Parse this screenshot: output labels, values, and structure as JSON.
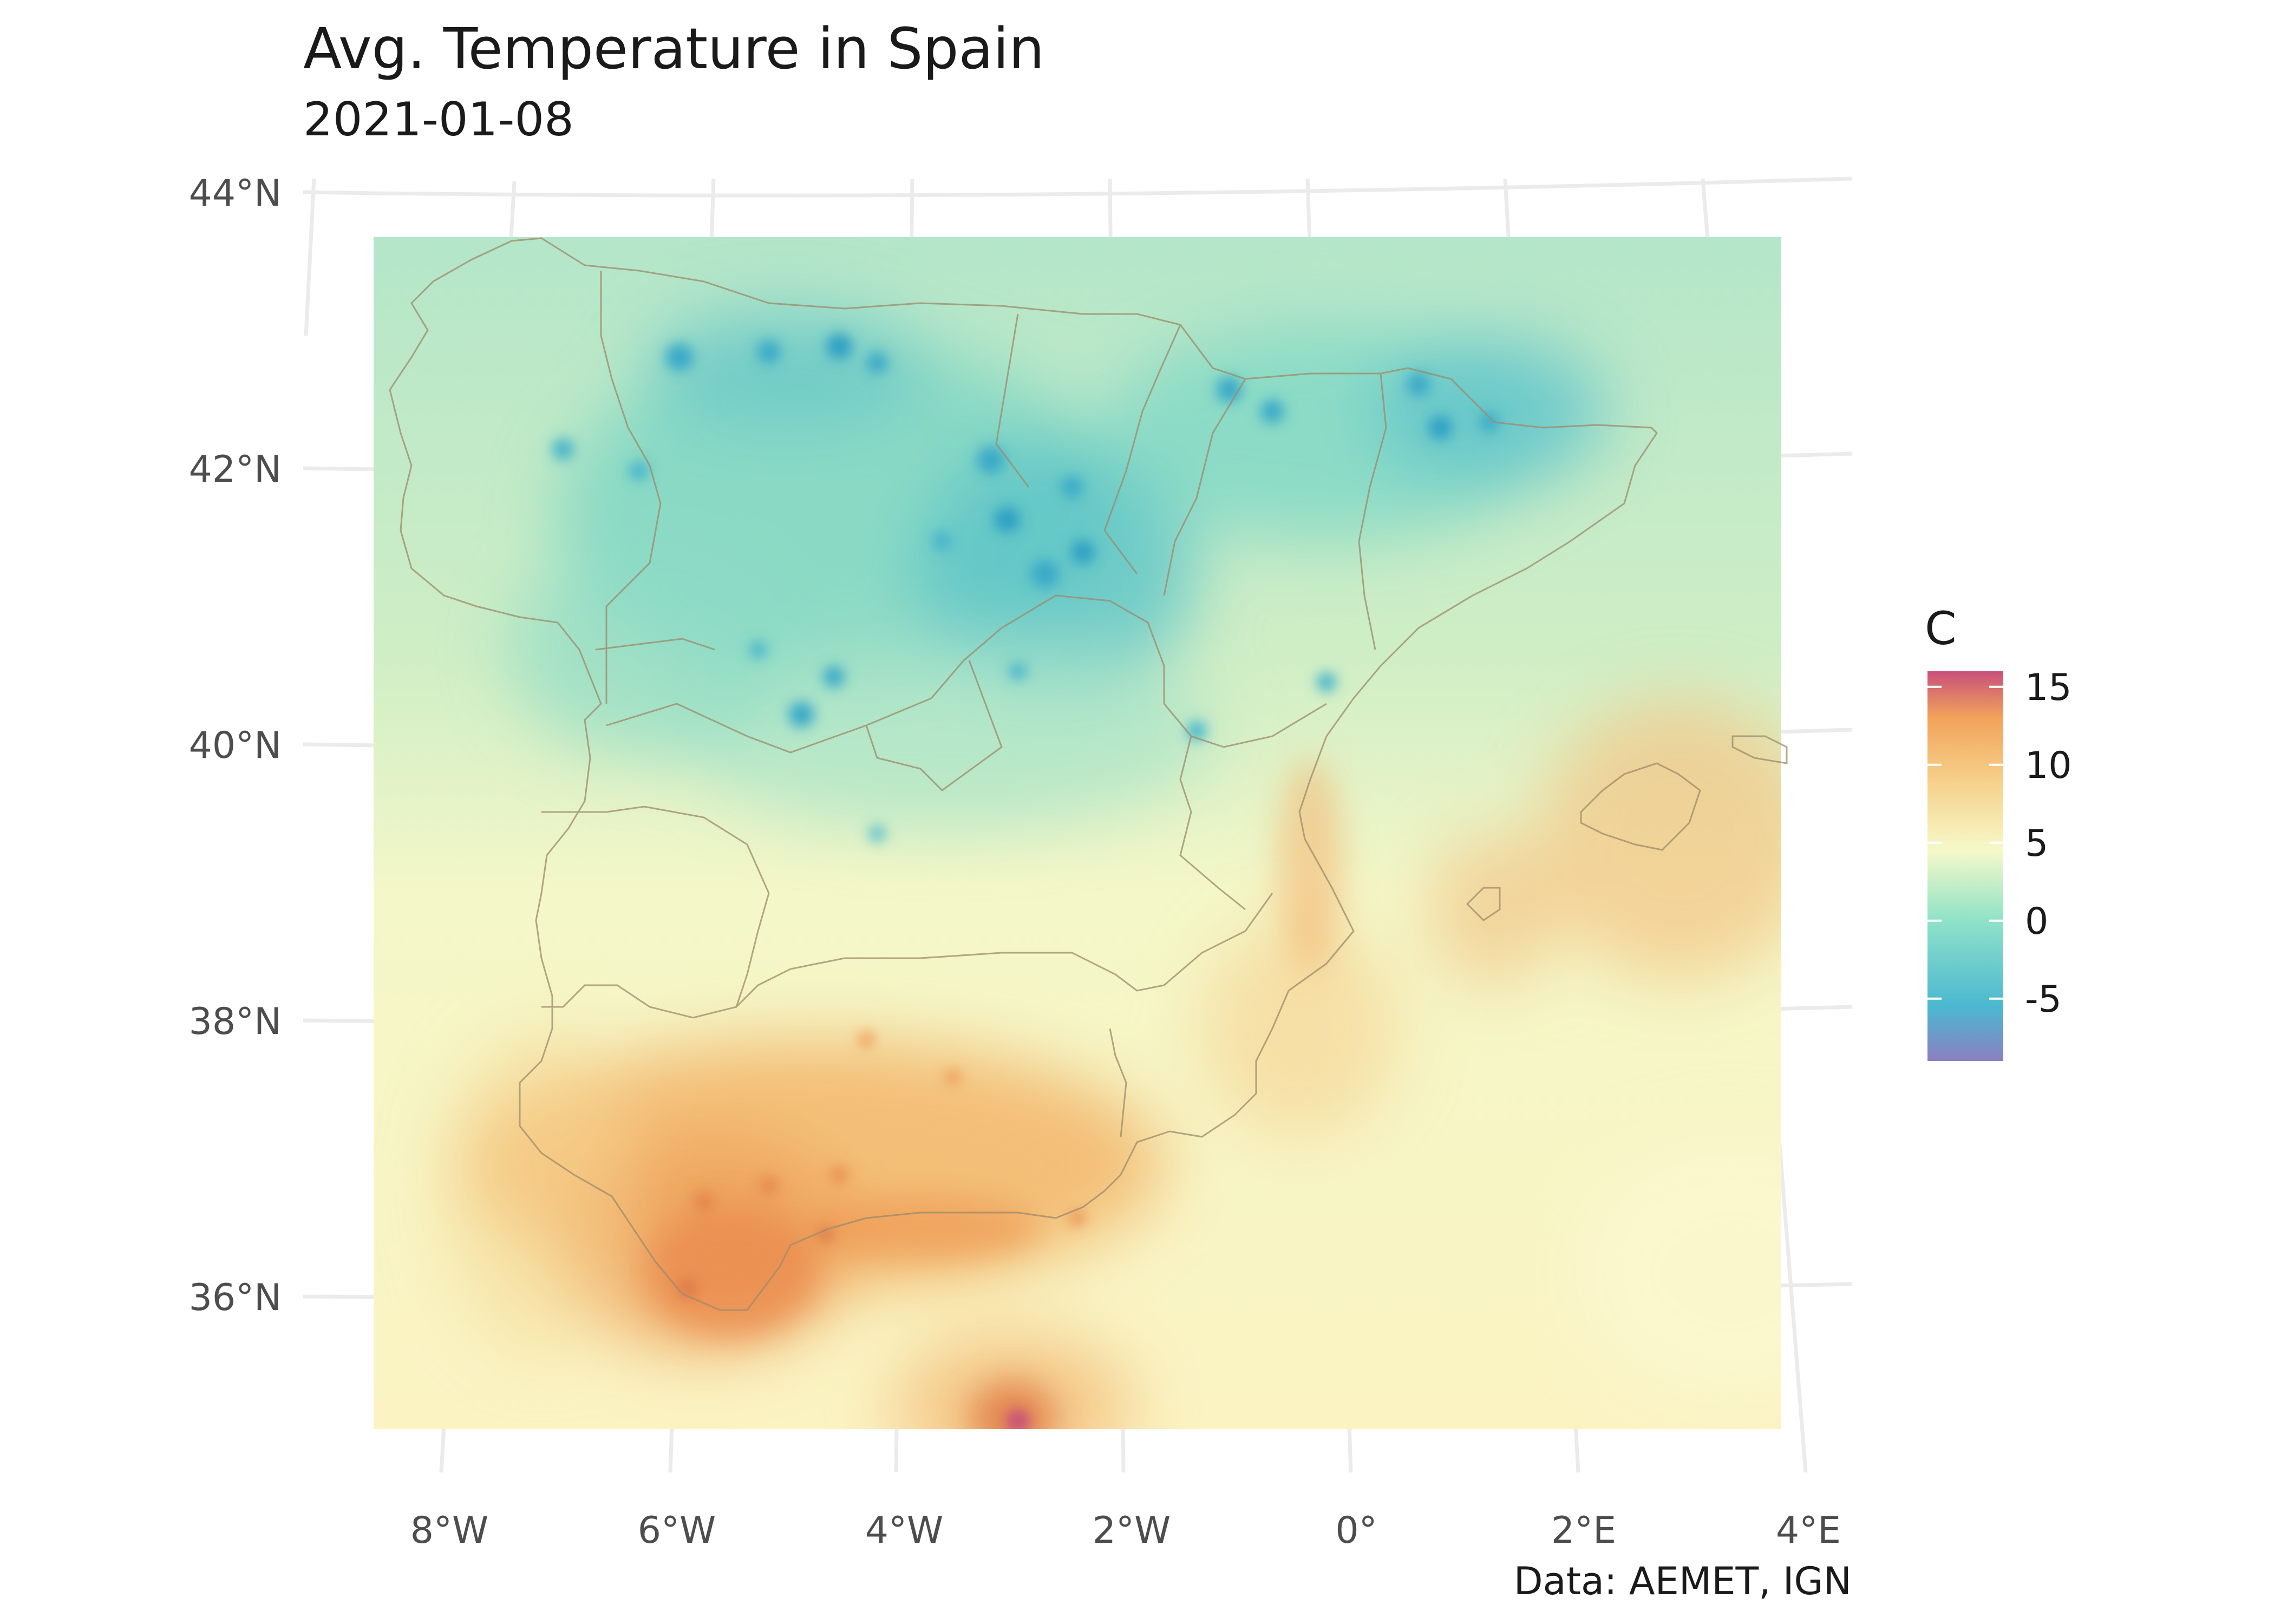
{
  "title": "Avg. Temperature in Spain",
  "subtitle": "2021-01-08",
  "caption": "Data: AEMET, IGN",
  "latitude_labels": [
    "44°N",
    "42°N",
    "40°N",
    "38°N",
    "36°N"
  ],
  "longitude_labels": [
    "8°W",
    "6°W",
    "4°W",
    "2°W",
    "0°",
    "2°E",
    "4°E"
  ],
  "legend": {
    "title": "C",
    "ticks": [
      "15",
      "10",
      "5",
      "0",
      "-5"
    ],
    "tick_values": [
      15,
      10,
      5,
      0,
      -5
    ],
    "range": [
      -9,
      16
    ],
    "colors": [
      "#8b7fc0",
      "#4bb8d1",
      "#8fe2c8",
      "#f6f9c9",
      "#f6d08a",
      "#f2a35a",
      "#c8507a"
    ]
  },
  "colors": {
    "cold": "#4bb8d1",
    "cool": "#9fe0c6",
    "mild": "#f8f6c8",
    "warm": "#f4c27a",
    "hot": "#ee9a55",
    "border": "#9c8a6a",
    "grid": "#ebebeb"
  }
}
